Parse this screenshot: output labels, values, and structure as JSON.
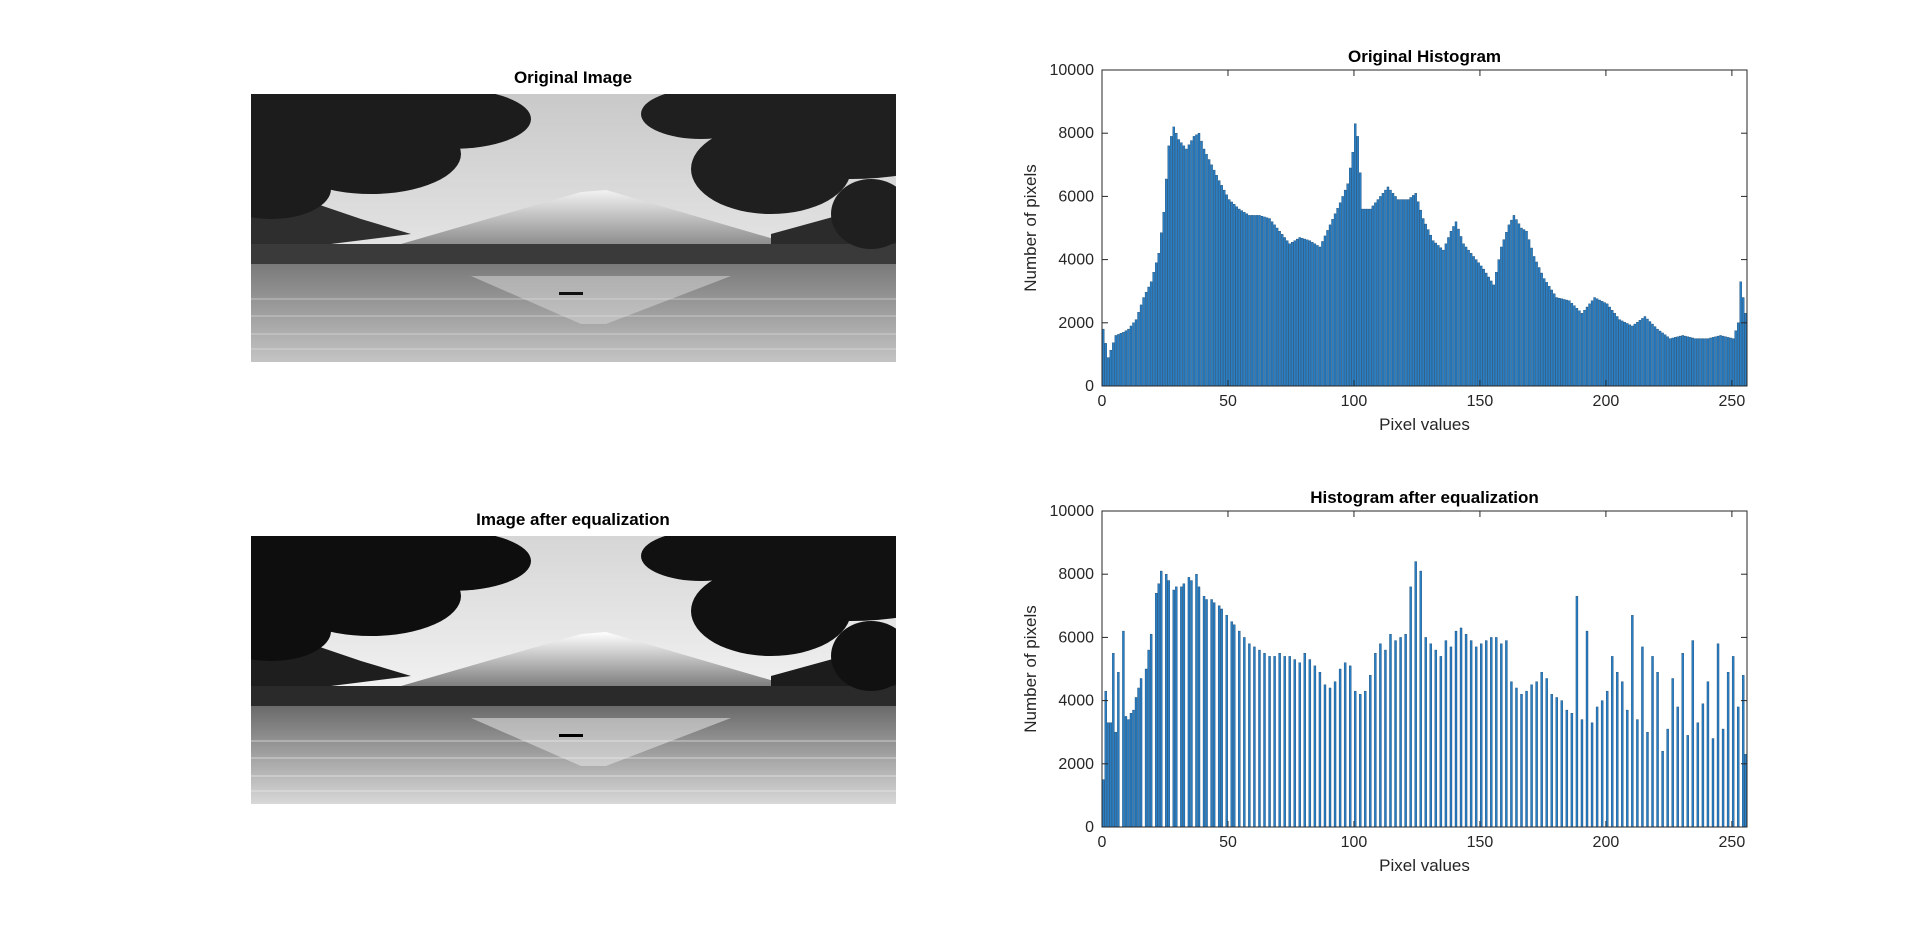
{
  "figure": {
    "original_image_title": "Original Image",
    "equalized_image_title": "Image after equalization"
  },
  "photos": {
    "original": {
      "tone": "grayscale landscape: mountain, lake reflection, tree canopy, boat"
    },
    "equalized": {
      "tone": "higher-contrast grayscale version of the same landscape"
    }
  },
  "chart_data": [
    {
      "type": "bar",
      "title": "Original Histogram",
      "xlabel": "Pixel values",
      "ylabel": "Number of pixels",
      "xlim": [
        0,
        256
      ],
      "ylim": [
        0,
        10000
      ],
      "xticks": [
        0,
        50,
        100,
        150,
        200,
        250
      ],
      "yticks": [
        0,
        2000,
        4000,
        6000,
        8000,
        10000
      ],
      "bar_color": "#2A7EC4",
      "edge_color": "#0C3D66",
      "grid": false,
      "bins_x": "0..255",
      "anchors": [
        [
          0,
          1800
        ],
        [
          2,
          900
        ],
        [
          5,
          1600
        ],
        [
          8,
          1700
        ],
        [
          10,
          1800
        ],
        [
          13,
          2100
        ],
        [
          16,
          2800
        ],
        [
          19,
          3300
        ],
        [
          22,
          4200
        ],
        [
          24,
          5500
        ],
        [
          26,
          7600
        ],
        [
          28,
          8200
        ],
        [
          30,
          7800
        ],
        [
          33,
          7500
        ],
        [
          36,
          7900
        ],
        [
          38,
          8000
        ],
        [
          40,
          7500
        ],
        [
          43,
          7000
        ],
        [
          46,
          6500
        ],
        [
          50,
          5900
        ],
        [
          54,
          5600
        ],
        [
          58,
          5400
        ],
        [
          62,
          5400
        ],
        [
          66,
          5300
        ],
        [
          70,
          4900
        ],
        [
          74,
          4500
        ],
        [
          78,
          4700
        ],
        [
          82,
          4600
        ],
        [
          86,
          4400
        ],
        [
          90,
          5100
        ],
        [
          94,
          5800
        ],
        [
          97,
          6400
        ],
        [
          99,
          7400
        ],
        [
          100,
          8300
        ],
        [
          101,
          7900
        ],
        [
          103,
          5600
        ],
        [
          106,
          5600
        ],
        [
          110,
          6000
        ],
        [
          113,
          6300
        ],
        [
          117,
          5900
        ],
        [
          121,
          5900
        ],
        [
          124,
          6100
        ],
        [
          127,
          5300
        ],
        [
          131,
          4600
        ],
        [
          135,
          4300
        ],
        [
          138,
          4900
        ],
        [
          140,
          5200
        ],
        [
          143,
          4500
        ],
        [
          147,
          4100
        ],
        [
          151,
          3700
        ],
        [
          155,
          3200
        ],
        [
          158,
          4400
        ],
        [
          161,
          5100
        ],
        [
          163,
          5400
        ],
        [
          166,
          5000
        ],
        [
          168,
          4900
        ],
        [
          171,
          4100
        ],
        [
          175,
          3400
        ],
        [
          180,
          2800
        ],
        [
          185,
          2700
        ],
        [
          190,
          2300
        ],
        [
          195,
          2800
        ],
        [
          200,
          2600
        ],
        [
          205,
          2100
        ],
        [
          210,
          1900
        ],
        [
          215,
          2200
        ],
        [
          220,
          1800
        ],
        [
          225,
          1500
        ],
        [
          230,
          1600
        ],
        [
          235,
          1500
        ],
        [
          240,
          1500
        ],
        [
          245,
          1600
        ],
        [
          250,
          1500
        ],
        [
          252,
          2000
        ],
        [
          253,
          3300
        ],
        [
          255,
          2300
        ]
      ]
    },
    {
      "type": "bar",
      "title": "Histogram after equalization",
      "xlabel": "Pixel values",
      "ylabel": "Number of pixels",
      "xlim": [
        0,
        256
      ],
      "ylim": [
        0,
        10000
      ],
      "xticks": [
        0,
        50,
        100,
        150,
        200,
        250
      ],
      "yticks": [
        0,
        2000,
        4000,
        6000,
        8000,
        10000
      ],
      "bar_color": "#2A7EC4",
      "edge_color": "#0C3D66",
      "grid": false,
      "bars": [
        [
          0,
          1500
        ],
        [
          1,
          4300
        ],
        [
          2,
          3300
        ],
        [
          3,
          3300
        ],
        [
          4,
          5500
        ],
        [
          5,
          3000
        ],
        [
          6,
          4900
        ],
        [
          8,
          6200
        ],
        [
          9,
          3500
        ],
        [
          10,
          3400
        ],
        [
          11,
          3600
        ],
        [
          12,
          3700
        ],
        [
          13,
          4100
        ],
        [
          14,
          4400
        ],
        [
          15,
          4700
        ],
        [
          17,
          5000
        ],
        [
          18,
          5600
        ],
        [
          19,
          6100
        ],
        [
          21,
          7400
        ],
        [
          22,
          7700
        ],
        [
          23,
          8100
        ],
        [
          25,
          8000
        ],
        [
          26,
          7800
        ],
        [
          28,
          7500
        ],
        [
          29,
          7600
        ],
        [
          31,
          7600
        ],
        [
          32,
          7700
        ],
        [
          34,
          7900
        ],
        [
          35,
          7800
        ],
        [
          37,
          8000
        ],
        [
          38,
          7600
        ],
        [
          40,
          7300
        ],
        [
          41,
          7200
        ],
        [
          43,
          7200
        ],
        [
          44,
          7100
        ],
        [
          46,
          7000
        ],
        [
          47,
          6900
        ],
        [
          49,
          6700
        ],
        [
          51,
          6500
        ],
        [
          52,
          6400
        ],
        [
          54,
          6200
        ],
        [
          56,
          6000
        ],
        [
          58,
          5800
        ],
        [
          60,
          5700
        ],
        [
          62,
          5600
        ],
        [
          64,
          5500
        ],
        [
          66,
          5400
        ],
        [
          68,
          5400
        ],
        [
          70,
          5500
        ],
        [
          72,
          5400
        ],
        [
          74,
          5400
        ],
        [
          76,
          5300
        ],
        [
          78,
          5200
        ],
        [
          80,
          5500
        ],
        [
          82,
          5300
        ],
        [
          84,
          5100
        ],
        [
          86,
          4900
        ],
        [
          88,
          4500
        ],
        [
          90,
          4400
        ],
        [
          92,
          4600
        ],
        [
          94,
          5000
        ],
        [
          96,
          5200
        ],
        [
          98,
          5100
        ],
        [
          100,
          4300
        ],
        [
          102,
          4200
        ],
        [
          104,
          4300
        ],
        [
          106,
          4800
        ],
        [
          108,
          5500
        ],
        [
          110,
          5800
        ],
        [
          112,
          5600
        ],
        [
          114,
          6100
        ],
        [
          116,
          5900
        ],
        [
          118,
          6000
        ],
        [
          120,
          6100
        ],
        [
          122,
          7600
        ],
        [
          124,
          8400
        ],
        [
          126,
          8100
        ],
        [
          128,
          6000
        ],
        [
          130,
          5800
        ],
        [
          132,
          5600
        ],
        [
          134,
          5400
        ],
        [
          136,
          5900
        ],
        [
          138,
          5700
        ],
        [
          140,
          6200
        ],
        [
          142,
          6300
        ],
        [
          144,
          6100
        ],
        [
          146,
          5900
        ],
        [
          148,
          5700
        ],
        [
          150,
          5800
        ],
        [
          152,
          5900
        ],
        [
          154,
          6000
        ],
        [
          156,
          6000
        ],
        [
          158,
          5800
        ],
        [
          160,
          5900
        ],
        [
          162,
          4600
        ],
        [
          164,
          4400
        ],
        [
          166,
          4200
        ],
        [
          168,
          4300
        ],
        [
          170,
          4500
        ],
        [
          172,
          4600
        ],
        [
          174,
          4900
        ],
        [
          176,
          4700
        ],
        [
          178,
          4200
        ],
        [
          180,
          4100
        ],
        [
          182,
          4000
        ],
        [
          184,
          3700
        ],
        [
          186,
          3600
        ],
        [
          188,
          7300
        ],
        [
          190,
          3400
        ],
        [
          192,
          6200
        ],
        [
          194,
          3300
        ],
        [
          196,
          3800
        ],
        [
          198,
          4000
        ],
        [
          200,
          4300
        ],
        [
          202,
          5400
        ],
        [
          204,
          4900
        ],
        [
          206,
          4600
        ],
        [
          208,
          3700
        ],
        [
          210,
          6700
        ],
        [
          212,
          3400
        ],
        [
          214,
          5700
        ],
        [
          216,
          3000
        ],
        [
          218,
          5400
        ],
        [
          220,
          4900
        ],
        [
          222,
          2400
        ],
        [
          224,
          3100
        ],
        [
          226,
          4700
        ],
        [
          228,
          3800
        ],
        [
          230,
          5500
        ],
        [
          232,
          2900
        ],
        [
          234,
          5900
        ],
        [
          236,
          3300
        ],
        [
          238,
          3900
        ],
        [
          240,
          4600
        ],
        [
          242,
          2800
        ],
        [
          244,
          5800
        ],
        [
          246,
          3100
        ],
        [
          248,
          4900
        ],
        [
          250,
          5400
        ],
        [
          252,
          3800
        ],
        [
          254,
          4800
        ],
        [
          255,
          2300
        ]
      ]
    }
  ]
}
